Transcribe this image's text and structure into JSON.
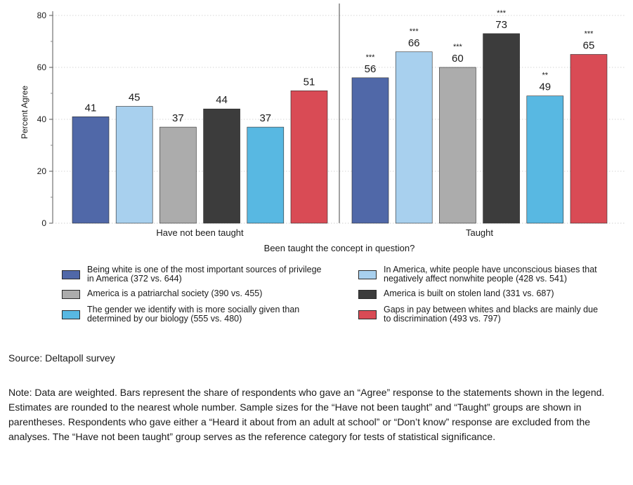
{
  "chart_data": {
    "type": "bar",
    "ylabel": "Percent Agree",
    "xlabel": "Been taught the concept in question?",
    "ylim": [
      0,
      80
    ],
    "yticks": [
      0,
      20,
      40,
      60,
      80
    ],
    "grid": true,
    "groups": [
      "Have not been taught",
      "Taught"
    ],
    "series": [
      {
        "name": "Being white is one of the most important sources of privilege in America (372 vs. 644)",
        "color": "#5068a8",
        "values": [
          41,
          56
        ],
        "significance": [
          "",
          "***"
        ]
      },
      {
        "name": "In America, white people have unconscious biases that negatively affect nonwhite people (428 vs. 541)",
        "color": "#a8d0ee",
        "values": [
          45,
          66
        ],
        "significance": [
          "",
          "***"
        ]
      },
      {
        "name": "America is a patriarchal society (390 vs. 455)",
        "color": "#acacac",
        "values": [
          37,
          60
        ],
        "significance": [
          "",
          "***"
        ]
      },
      {
        "name": "America is built on stolen land (331 vs. 687)",
        "color": "#3c3c3c",
        "values": [
          44,
          73
        ],
        "significance": [
          "",
          "***"
        ]
      },
      {
        "name": "The gender we identify with is more socially given than determined by our biology (555 vs. 480)",
        "color": "#58b8e2",
        "values": [
          37,
          49
        ],
        "significance": [
          "",
          "**"
        ]
      },
      {
        "name": "Gaps in pay between whites and blacks are mainly due to discrimination (493 vs. 797)",
        "color": "#d94b55",
        "values": [
          51,
          65
        ],
        "significance": [
          "",
          "***"
        ]
      }
    ]
  },
  "legend": [
    {
      "line1": "Being white is one of the most important sources of privilege",
      "line2": "in America (372 vs. 644)",
      "color": "#5068a8"
    },
    {
      "line1": "In America, white people have unconscious biases that",
      "line2": "negatively affect nonwhite people (428 vs. 541)",
      "color": "#a8d0ee"
    },
    {
      "line1": "America is a patriarchal society (390 vs. 455)",
      "line2": "",
      "color": "#acacac"
    },
    {
      "line1": "America is built on stolen land (331 vs. 687)",
      "line2": "",
      "color": "#3c3c3c"
    },
    {
      "line1": "The gender we identify with is more socially given than",
      "line2": "determined by our biology (555 vs. 480)",
      "color": "#58b8e2"
    },
    {
      "line1": "Gaps in pay between whites and blacks are mainly due",
      "line2": "to discrimination (493 vs. 797)",
      "color": "#d94b55"
    }
  ],
  "source": "Source: Deltapoll survey",
  "note": "Note: Data are weighted. Bars represent the share of respondents who gave an “Agree” response to the statements shown in the legend. Estimates are rounded to the nearest whole number. Sample sizes for the “Have not been taught” and “Taught” groups are shown in parentheses. Respondents who gave either a “Heard it about from an adult at school” or “Don’t know” response are excluded from the analyses. The “Have not been taught” group serves as the reference category for tests of statistical significance."
}
